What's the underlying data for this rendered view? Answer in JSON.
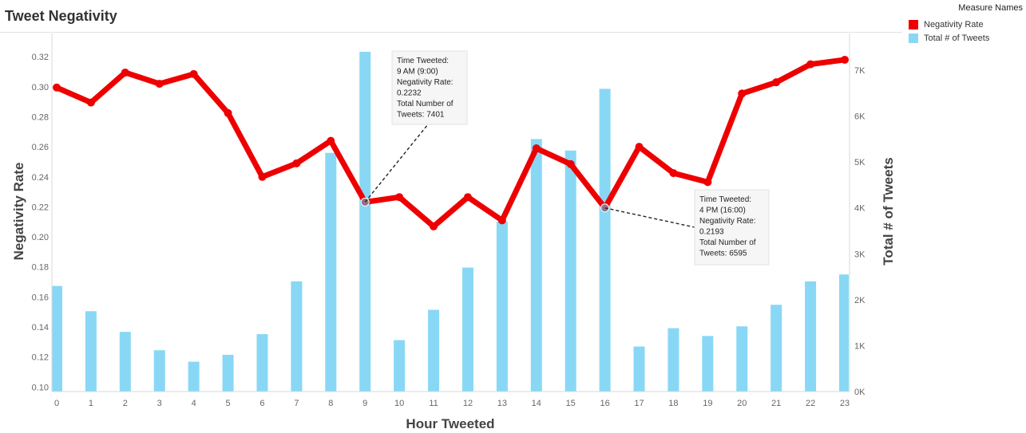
{
  "title": "Tweet Negativity",
  "legend": {
    "title": "Measure Names",
    "items": [
      {
        "label": "Negativity Rate",
        "color": "#ee0000"
      },
      {
        "label": "Total # of Tweets",
        "color": "#88d8f5"
      }
    ]
  },
  "chart_data": {
    "type": "bar+line",
    "title": "Tweet Negativity",
    "xlabel": "Hour Tweeted",
    "ylabel_left": "Negativity Rate",
    "ylabel_right": "Total # of Tweets",
    "categories": [
      "0",
      "1",
      "2",
      "3",
      "4",
      "5",
      "6",
      "7",
      "8",
      "9",
      "10",
      "11",
      "12",
      "13",
      "14",
      "15",
      "16",
      "17",
      "18",
      "19",
      "20",
      "21",
      "22",
      "23"
    ],
    "left_axis": {
      "min": 0.097,
      "max": 0.3355,
      "ticks": [
        0.1,
        0.12,
        0.14,
        0.16,
        0.18,
        0.2,
        0.22,
        0.24,
        0.26,
        0.28,
        0.3,
        0.32
      ]
    },
    "right_axis": {
      "min": 0,
      "max": 7800,
      "ticks": [
        0,
        1000,
        2000,
        3000,
        4000,
        5000,
        6000,
        7000
      ],
      "tick_labels": [
        "0K",
        "1K",
        "2K",
        "3K",
        "4K",
        "5K",
        "6K",
        "7K"
      ]
    },
    "grid": false,
    "legend_position": "top-right",
    "series": [
      {
        "name": "Total # of Tweets",
        "kind": "bar",
        "axis": "right",
        "color": "#88d8f5",
        "values": [
          2300,
          1750,
          1300,
          900,
          650,
          800,
          1250,
          2400,
          5200,
          7401,
          1120,
          1780,
          2700,
          3700,
          5500,
          5250,
          6595,
          980,
          1380,
          1210,
          1420,
          1890,
          2400,
          2550
        ]
      },
      {
        "name": "Negativity Rate",
        "kind": "line",
        "axis": "left",
        "color": "#ee0000",
        "values": [
          0.2995,
          0.2895,
          0.3095,
          0.302,
          0.3085,
          0.2825,
          0.24,
          0.249,
          0.264,
          0.2232,
          0.2265,
          0.207,
          0.2265,
          0.211,
          0.259,
          0.2485,
          0.2193,
          0.26,
          0.2425,
          0.2365,
          0.2955,
          0.303,
          0.315,
          0.318
        ]
      }
    ],
    "annotations": [
      {
        "category": "9",
        "lines": [
          "Time Tweeted:",
          "9 AM (9:00)",
          "Negativity Rate:",
          "0.2232",
          "Total Number of",
          "Tweets: 7401"
        ]
      },
      {
        "category": "16",
        "lines": [
          "Time Tweeted:",
          "4 PM (16:00)",
          "Negativity Rate:",
          "0.2193",
          "Total Number of",
          "Tweets: 6595"
        ]
      }
    ]
  }
}
